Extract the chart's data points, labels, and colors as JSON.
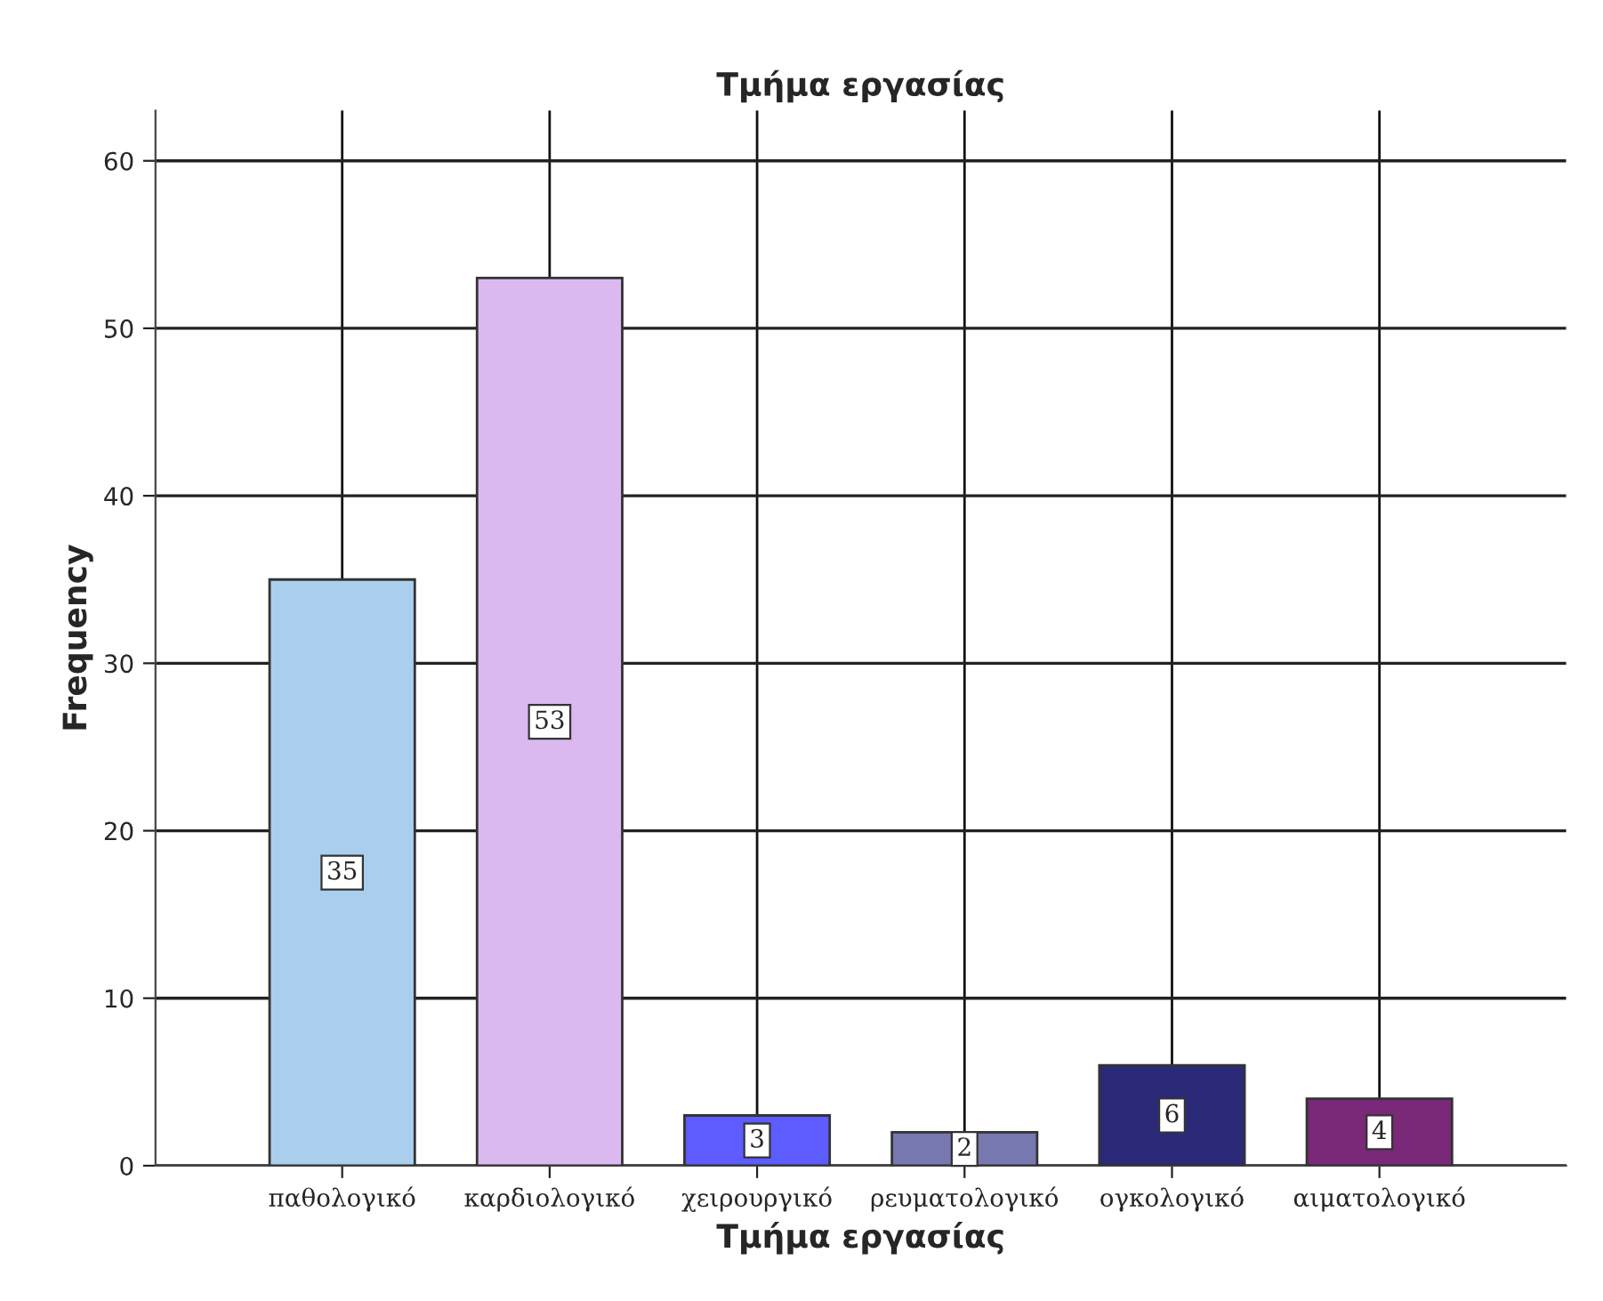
{
  "chart_data": {
    "type": "bar",
    "title": "Τμήμα εργασίας",
    "xlabel": "Τμήμα εργασίας",
    "ylabel": "Frequency",
    "categories": [
      "παθολογικό",
      "καρδιολογικό",
      "χειρουργικό",
      "ρευματολογικό",
      "ογκολογικό",
      "αιματολογικό"
    ],
    "values": [
      35,
      53,
      3,
      2,
      6,
      4
    ],
    "colors": [
      "#aacfee",
      "#dcb8f0",
      "#5c5cff",
      "#7878b0",
      "#2a2a78",
      "#7a2878"
    ],
    "ylim": [
      0,
      63
    ],
    "yticks": [
      0,
      10,
      20,
      30,
      40,
      50,
      60
    ],
    "grid": true,
    "data_labels": true
  }
}
